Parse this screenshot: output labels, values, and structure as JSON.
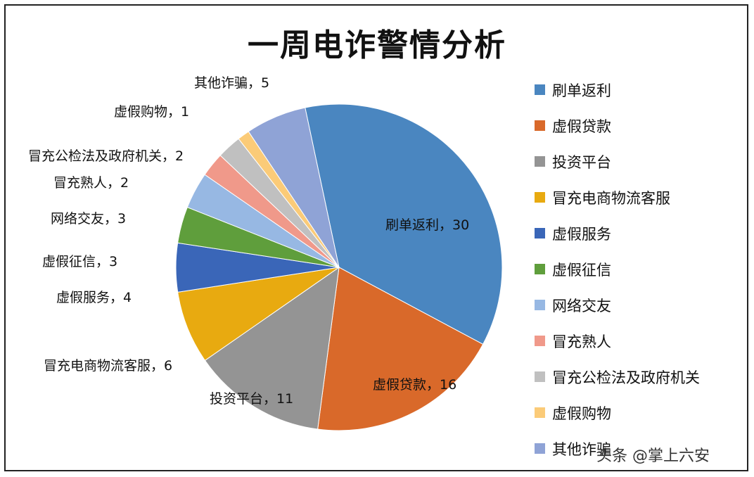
{
  "chart_data": {
    "type": "pie",
    "title": "一周电诈警情分析",
    "categories": [
      "刷单返利",
      "虚假贷款",
      "投资平台",
      "冒充电商物流客服",
      "虚假服务",
      "虚假征信",
      "网络交友",
      "冒充熟人",
      "冒充公检法及政府机关",
      "虚假购物",
      "其他诈骗"
    ],
    "values": [
      30,
      16,
      11,
      6,
      4,
      3,
      3,
      2,
      2,
      1,
      5
    ],
    "colors": [
      "#4a86c0",
      "#d9692a",
      "#949494",
      "#e8aa10",
      "#3a66b8",
      "#5f9e3c",
      "#97b8e3",
      "#f0998a",
      "#c0c0c0",
      "#fbcb78",
      "#8fa3d6"
    ],
    "data_labels": [
      "刷单返利，30",
      "虚假贷款，16",
      "投资平台，11",
      "冒充电商物流客服，6",
      "虚假服务，4",
      "虚假征信，3",
      "网络交友，3",
      "冒充熟人，2",
      "冒充公检法及政府机关，2",
      "虚假购物，1",
      "其他诈骗，5"
    ],
    "legend_position": "right"
  },
  "watermark": "头条 @掌上六安"
}
